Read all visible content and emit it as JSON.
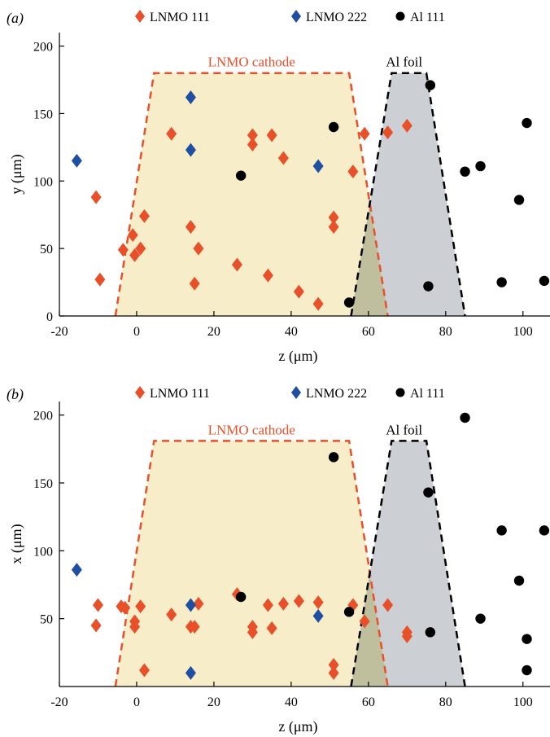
{
  "colors": {
    "lnmo111": "#e8502a",
    "lnmo222": "#1f4fa3",
    "al111": "#000000",
    "cathode_fill": "#f7edc9",
    "cathode_edge": "#e8502a",
    "foil_fill": "#c9ccd2",
    "foil_edge": "#000000",
    "overlap_fill": "#bfbf9e"
  },
  "chart_data": [
    {
      "type": "scatter",
      "panel_label": "(a)",
      "xlabel": "z (μm)",
      "ylabel": "y (μm)",
      "xlim": [
        -20,
        107
      ],
      "ylim": [
        0,
        210
      ],
      "xticks": [
        "-20",
        "0",
        "20",
        "40",
        "60",
        "80",
        "100"
      ],
      "xtick_values": [
        -20,
        0,
        20,
        40,
        60,
        80,
        100
      ],
      "yticks": [
        "0",
        "50",
        "100",
        "150",
        "200"
      ],
      "ytick_values": [
        0,
        50,
        100,
        150,
        200
      ],
      "legend": {
        "placement": "top-center",
        "entries": [
          "LNMO 111",
          "LNMO 222",
          "Al 111"
        ]
      },
      "regions": [
        {
          "label": "LNMO cathode",
          "kind": "cathode",
          "polygon": [
            [
              -5.5,
              0
            ],
            [
              4.5,
              180
            ],
            [
              55,
              180
            ],
            [
              65,
              0
            ]
          ]
        },
        {
          "label": "Al foil",
          "kind": "foil",
          "polygon": [
            [
              55.5,
              0
            ],
            [
              66,
              180
            ],
            [
              75,
              180
            ],
            [
              85,
              0
            ]
          ]
        }
      ],
      "series": [
        {
          "name": "LNMO 111",
          "marker": "diamond",
          "points": [
            [
              -10.5,
              88
            ],
            [
              -9.5,
              27
            ],
            [
              -3.5,
              49
            ],
            [
              -1,
              60
            ],
            [
              -0.5,
              45
            ],
            [
              1,
              50
            ],
            [
              2,
              74
            ],
            [
              9,
              135
            ],
            [
              14,
              66
            ],
            [
              15,
              24
            ],
            [
              16,
              50
            ],
            [
              26,
              38
            ],
            [
              30,
              134
            ],
            [
              30,
              127
            ],
            [
              34,
              30
            ],
            [
              35,
              134
            ],
            [
              38,
              117
            ],
            [
              42,
              18
            ],
            [
              47,
              9
            ],
            [
              51,
              73
            ],
            [
              51,
              66
            ],
            [
              56,
              107
            ],
            [
              59,
              135
            ],
            [
              65,
              136
            ],
            [
              70,
              141
            ]
          ]
        },
        {
          "name": "LNMO 222",
          "marker": "diamond",
          "points": [
            [
              -15.5,
              115
            ],
            [
              14,
              162
            ],
            [
              14,
              123
            ],
            [
              47,
              111
            ]
          ]
        },
        {
          "name": "Al 111",
          "marker": "circle",
          "points": [
            [
              27,
              104
            ],
            [
              51,
              140
            ],
            [
              55,
              10
            ],
            [
              75.5,
              22
            ],
            [
              76,
              171
            ],
            [
              85,
              107
            ],
            [
              89,
              111
            ],
            [
              94.5,
              25
            ],
            [
              99,
              86
            ],
            [
              101,
              143
            ],
            [
              105.5,
              26
            ]
          ]
        }
      ]
    },
    {
      "type": "scatter",
      "panel_label": "(b)",
      "xlabel": "z (μm)",
      "ylabel": "x (μm)",
      "xlim": [
        -20,
        107
      ],
      "ylim": [
        0,
        210
      ],
      "xticks": [
        "-20",
        "0",
        "20",
        "40",
        "60",
        "80",
        "100"
      ],
      "xtick_values": [
        -20,
        0,
        20,
        40,
        60,
        80,
        100
      ],
      "yticks": [
        "50",
        "100",
        "150",
        "200"
      ],
      "ytick_values": [
        50,
        100,
        150,
        200
      ],
      "legend": {
        "placement": "top-center",
        "entries": [
          "LNMO 111",
          "LNMO 222",
          "Al 111"
        ]
      },
      "regions": [
        {
          "label": "LNMO cathode",
          "kind": "cathode",
          "polygon": [
            [
              -5.5,
              0
            ],
            [
              4.5,
              181
            ],
            [
              55,
              181
            ],
            [
              65,
              0
            ]
          ]
        },
        {
          "label": "Al foil",
          "kind": "foil",
          "polygon": [
            [
              55.5,
              0
            ],
            [
              66,
              181
            ],
            [
              75,
              181
            ],
            [
              85,
              0
            ]
          ]
        }
      ],
      "series": [
        {
          "name": "LNMO 111",
          "marker": "diamond",
          "points": [
            [
              -10.5,
              45
            ],
            [
              -10,
              60
            ],
            [
              -4,
              59
            ],
            [
              -3,
              58
            ],
            [
              -0.5,
              48
            ],
            [
              -0.5,
              44
            ],
            [
              1,
              59
            ],
            [
              2,
              12
            ],
            [
              9,
              53
            ],
            [
              14,
              44
            ],
            [
              15,
              44
            ],
            [
              16,
              61
            ],
            [
              26,
              68
            ],
            [
              30,
              44
            ],
            [
              30,
              40
            ],
            [
              34,
              60
            ],
            [
              35,
              43
            ],
            [
              38,
              61
            ],
            [
              42,
              63
            ],
            [
              47,
              62
            ],
            [
              51,
              16
            ],
            [
              51,
              10
            ],
            [
              56,
              60
            ],
            [
              59,
              48
            ],
            [
              65,
              60
            ],
            [
              70,
              40
            ],
            [
              70,
              37
            ]
          ]
        },
        {
          "name": "LNMO 222",
          "marker": "diamond",
          "points": [
            [
              -15.5,
              86
            ],
            [
              14,
              60
            ],
            [
              14,
              10
            ],
            [
              47,
              52
            ]
          ]
        },
        {
          "name": "Al 111",
          "marker": "circle",
          "points": [
            [
              27,
              66
            ],
            [
              51,
              169
            ],
            [
              55,
              55
            ],
            [
              75.5,
              143
            ],
            [
              76,
              40
            ],
            [
              85,
              198
            ],
            [
              89,
              50
            ],
            [
              94.5,
              115
            ],
            [
              99,
              78
            ],
            [
              101,
              35
            ],
            [
              101,
              12
            ],
            [
              105.5,
              115
            ]
          ]
        }
      ]
    }
  ]
}
